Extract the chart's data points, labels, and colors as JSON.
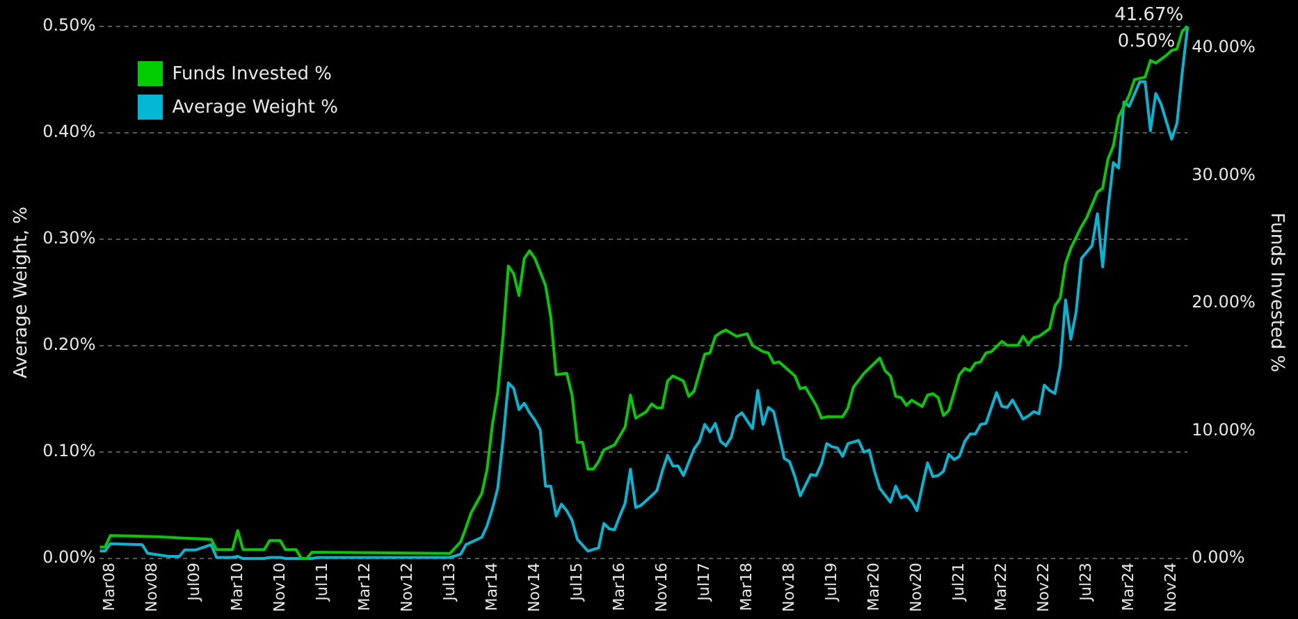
{
  "chart_data": {
    "type": "line",
    "ylabel": "Average Weight, %",
    "y2label": "Funds Invested %",
    "xlim": [
      "2008-01",
      "2025-02"
    ],
    "xticks": [
      {
        "value": "2008-03",
        "label": "Mar08"
      },
      {
        "value": "2008-11",
        "label": "Nov08"
      },
      {
        "value": "2009-07",
        "label": "Jul09"
      },
      {
        "value": "2010-03",
        "label": "Mar10"
      },
      {
        "value": "2010-11",
        "label": "Nov10"
      },
      {
        "value": "2011-07",
        "label": "Jul11"
      },
      {
        "value": "2012-03",
        "label": "Mar12"
      },
      {
        "value": "2012-11",
        "label": "Nov12"
      },
      {
        "value": "2013-07",
        "label": "Jul13"
      },
      {
        "value": "2014-03",
        "label": "Mar14"
      },
      {
        "value": "2014-11",
        "label": "Nov14"
      },
      {
        "value": "2015-07",
        "label": "Jul15"
      },
      {
        "value": "2016-03",
        "label": "Mar16"
      },
      {
        "value": "2016-11",
        "label": "Nov16"
      },
      {
        "value": "2017-07",
        "label": "Jul17"
      },
      {
        "value": "2018-03",
        "label": "Mar18"
      },
      {
        "value": "2018-11",
        "label": "Nov18"
      },
      {
        "value": "2019-07",
        "label": "Jul19"
      },
      {
        "value": "2020-03",
        "label": "Mar20"
      },
      {
        "value": "2020-11",
        "label": "Nov20"
      },
      {
        "value": "2021-07",
        "label": "Jul21"
      },
      {
        "value": "2022-03",
        "label": "Mar22"
      },
      {
        "value": "2022-11",
        "label": "Nov22"
      },
      {
        "value": "2023-07",
        "label": "Jul23"
      },
      {
        "value": "2024-03",
        "label": "Mar24"
      },
      {
        "value": "2024-11",
        "label": "Nov24"
      }
    ],
    "ylim": [
      0,
      0.5
    ],
    "yticks": [
      {
        "value": 0,
        "label": "0.00%"
      },
      {
        "value": 0.1,
        "label": "0.10%"
      },
      {
        "value": 0.2,
        "label": "0.20%"
      },
      {
        "value": 0.3,
        "label": "0.30%"
      },
      {
        "value": 0.4,
        "label": "0.40%"
      },
      {
        "value": 0.5,
        "label": "0.50%"
      }
    ],
    "y2lim": [
      0,
      41.67
    ],
    "y2ticks": [
      {
        "value": 0,
        "label": "0.00%"
      },
      {
        "value": 10,
        "label": "10.00%"
      },
      {
        "value": 20,
        "label": "20.00%"
      },
      {
        "value": 30,
        "label": "30.00%"
      },
      {
        "value": 40,
        "label": "40.00%"
      }
    ],
    "grid": "y",
    "legend": "top left",
    "series": [
      {
        "name": "Funds Invested %",
        "color": "#00cc00",
        "axis": "y2",
        "x": [
          "2008-01",
          "2008-02",
          "2008-03",
          "2008-12",
          "2009-10",
          "2009-11",
          "2010-02",
          "2010-03",
          "2010-04",
          "2010-08",
          "2010-09",
          "2010-11",
          "2010-12",
          "2011-02",
          "2011-03",
          "2011-04",
          "2011-05",
          "2013-07",
          "2013-09",
          "2013-10",
          "2013-11",
          "2014-01",
          "2014-02",
          "2014-03",
          "2014-04",
          "2014-05",
          "2014-06",
          "2014-07",
          "2014-08",
          "2014-09",
          "2014-10",
          "2014-11",
          "2015-01",
          "2015-02",
          "2015-03",
          "2015-05",
          "2015-06",
          "2015-07",
          "2015-08",
          "2015-09",
          "2015-10",
          "2015-11",
          "2015-12",
          "2016-02",
          "2016-04",
          "2016-05",
          "2016-06",
          "2016-08",
          "2016-09",
          "2016-10",
          "2016-11",
          "2016-12",
          "2017-01",
          "2017-03",
          "2017-04",
          "2017-05",
          "2017-07",
          "2017-08",
          "2017-09",
          "2017-10",
          "2017-11",
          "2018-01",
          "2018-03",
          "2018-04",
          "2018-06",
          "2018-07",
          "2018-08",
          "2018-09",
          "2018-12",
          "2019-01",
          "2019-02",
          "2019-04",
          "2019-05",
          "2019-06",
          "2019-09",
          "2019-10",
          "2019-11",
          "2020-01",
          "2020-02",
          "2020-04",
          "2020-05",
          "2020-06",
          "2020-07",
          "2020-08",
          "2020-09",
          "2020-10",
          "2020-12",
          "2021-01",
          "2021-02",
          "2021-03",
          "2021-04",
          "2021-05",
          "2021-07",
          "2021-08",
          "2021-09",
          "2021-10",
          "2021-11",
          "2021-12",
          "2022-01",
          "2022-03",
          "2022-04",
          "2022-06",
          "2022-07",
          "2022-08",
          "2022-09",
          "2022-10",
          "2022-12",
          "2023-01",
          "2023-02",
          "2023-03",
          "2023-04",
          "2023-06",
          "2023-07",
          "2023-09",
          "2023-10",
          "2023-11",
          "2023-12",
          "2024-01",
          "2024-02",
          "2024-03",
          "2024-04",
          "2024-06",
          "2024-07",
          "2024-08",
          "2024-10",
          "2024-11",
          "2024-12",
          "2025-01",
          "2025-02"
        ],
        "values": [
          0.9,
          0.9,
          1.8,
          1.7,
          1.5,
          0.7,
          0.7,
          2.2,
          0.7,
          0.7,
          1.4,
          1.4,
          0.7,
          0.7,
          0,
          0,
          0.5,
          0.4,
          1.3,
          2.4,
          3.6,
          5.1,
          7.0,
          10.5,
          13.0,
          17.4,
          22.9,
          22.3,
          20.6,
          23.5,
          24.1,
          23.5,
          21.4,
          18.9,
          14.4,
          14.5,
          12.8,
          9.1,
          9.1,
          7.0,
          7.0,
          7.6,
          8.5,
          8.9,
          10.3,
          12.8,
          11.0,
          11.5,
          12.1,
          11.8,
          11.8,
          13.9,
          14.3,
          13.9,
          12.7,
          13.1,
          16.0,
          16.1,
          17.4,
          17.7,
          17.9,
          17.4,
          17.6,
          16.7,
          16.2,
          16.1,
          15.3,
          15.4,
          14.3,
          13.3,
          13.4,
          12.0,
          11.0,
          11.1,
          11.1,
          11.8,
          13.4,
          14.5,
          14.9,
          15.7,
          14.7,
          14.3,
          12.7,
          12.6,
          12.0,
          12.4,
          11.9,
          12.8,
          12.9,
          12.6,
          11.2,
          11.6,
          14.4,
          14.9,
          14.7,
          15.3,
          15.4,
          16.1,
          16.2,
          17.0,
          16.7,
          16.7,
          17.4,
          16.8,
          17.3,
          17.4,
          18.0,
          19.8,
          20.4,
          23.1,
          24.3,
          26.0,
          26.7,
          28.7,
          29.0,
          31.3,
          32.3,
          34.6,
          35.4,
          36.3,
          37.5,
          37.7,
          39.0,
          38.8,
          39.4,
          39.8,
          39.9,
          41.3,
          41.67
        ],
        "value_labels": [
          null,
          null,
          null,
          null,
          null,
          null,
          null,
          null,
          null,
          null,
          null,
          null,
          null,
          null,
          null,
          null,
          null,
          null,
          null,
          null,
          null,
          null,
          null,
          null,
          null,
          null,
          null,
          null,
          null,
          null,
          null,
          null,
          null,
          null,
          null,
          null,
          null,
          null,
          null,
          null,
          null,
          null,
          null,
          null,
          null,
          null,
          null,
          null,
          null,
          null,
          null,
          null,
          null,
          null,
          null,
          null,
          null,
          null,
          null,
          null,
          null,
          null,
          null,
          null,
          null,
          null,
          null,
          null,
          null,
          null,
          null,
          null,
          null,
          null,
          null,
          null,
          null,
          null,
          null,
          null,
          null,
          null,
          null,
          null,
          null,
          null,
          null,
          null,
          null,
          null,
          null,
          null,
          null,
          null,
          null,
          null,
          null,
          null,
          null,
          null,
          null,
          null,
          null,
          null,
          null,
          null,
          null,
          null,
          null,
          null,
          null,
          null,
          null,
          null,
          null,
          null,
          null,
          null,
          null,
          null,
          null,
          null,
          null,
          null,
          null,
          null,
          null,
          null,
          "41.67%"
        ]
      },
      {
        "name": "Average Weight %",
        "color": "#00b8d4",
        "x": [
          "2008-01",
          "2008-02",
          "2008-03",
          "2008-09",
          "2008-10",
          "2009-02",
          "2009-04",
          "2009-05",
          "2009-07",
          "2009-10",
          "2009-11",
          "2010-02",
          "2010-03",
          "2010-04",
          "2010-08",
          "2010-09",
          "2010-11",
          "2010-12",
          "2011-05",
          "2011-06",
          "2013-07",
          "2013-09",
          "2013-10",
          "2014-01",
          "2014-02",
          "2014-03",
          "2014-04",
          "2014-05",
          "2014-06",
          "2014-07",
          "2014-08",
          "2014-09",
          "2014-10",
          "2014-11",
          "2014-12",
          "2015-01",
          "2015-02",
          "2015-03",
          "2015-04",
          "2015-05",
          "2015-06",
          "2015-07",
          "2015-09",
          "2015-11",
          "2015-12",
          "2016-01",
          "2016-02",
          "2016-03",
          "2016-04",
          "2016-05",
          "2016-06",
          "2016-07",
          "2016-09",
          "2016-10",
          "2016-11",
          "2016-12",
          "2017-01",
          "2017-02",
          "2017-03",
          "2017-05",
          "2017-06",
          "2017-07",
          "2017-08",
          "2017-09",
          "2017-10",
          "2017-11",
          "2017-12",
          "2018-01",
          "2018-02",
          "2018-04",
          "2018-05",
          "2018-06",
          "2018-07",
          "2018-08",
          "2018-10",
          "2018-11",
          "2018-12",
          "2019-01",
          "2019-03",
          "2019-04",
          "2019-05",
          "2019-06",
          "2019-07",
          "2019-08",
          "2019-09",
          "2019-10",
          "2019-12",
          "2020-01",
          "2020-02",
          "2020-03",
          "2020-04",
          "2020-06",
          "2020-07",
          "2020-08",
          "2020-09",
          "2020-10",
          "2020-11",
          "2020-12",
          "2021-01",
          "2021-02",
          "2021-03",
          "2021-04",
          "2021-05",
          "2021-06",
          "2021-07",
          "2021-08",
          "2021-09",
          "2021-10",
          "2021-11",
          "2021-12",
          "2022-02",
          "2022-03",
          "2022-04",
          "2022-05",
          "2022-07",
          "2022-08",
          "2022-09",
          "2022-10",
          "2022-11",
          "2022-12",
          "2023-01",
          "2023-02",
          "2023-03",
          "2023-04",
          "2023-05",
          "2023-06",
          "2023-08",
          "2023-09",
          "2023-10",
          "2023-11",
          "2023-12",
          "2024-01",
          "2024-02",
          "2024-03",
          "2024-05",
          "2024-06",
          "2024-07",
          "2024-08",
          "2024-09",
          "2024-11",
          "2024-12",
          "2025-01",
          "2025-02"
        ],
        "values": [
          0.007,
          0.007,
          0.014,
          0.013,
          0.005,
          0.002,
          0.002,
          0.008,
          0.008,
          0.013,
          0.001,
          0.001,
          0.002,
          0,
          0,
          0.001,
          0.001,
          0,
          0,
          0.001,
          0.001,
          0.004,
          0.013,
          0.02,
          0.031,
          0.047,
          0.066,
          0.112,
          0.165,
          0.16,
          0.14,
          0.146,
          0.137,
          0.13,
          0.121,
          0.068,
          0.068,
          0.04,
          0.051,
          0.045,
          0.036,
          0.018,
          0.007,
          0.01,
          0.033,
          0.028,
          0.027,
          0.04,
          0.052,
          0.084,
          0.048,
          0.05,
          0.059,
          0.064,
          0.082,
          0.097,
          0.087,
          0.087,
          0.078,
          0.103,
          0.11,
          0.126,
          0.119,
          0.127,
          0.11,
          0.106,
          0.114,
          0.133,
          0.137,
          0.122,
          0.158,
          0.126,
          0.142,
          0.138,
          0.094,
          0.091,
          0.077,
          0.059,
          0.079,
          0.078,
          0.089,
          0.108,
          0.105,
          0.104,
          0.096,
          0.108,
          0.111,
          0.1,
          0.102,
          0.082,
          0.066,
          0.053,
          0.068,
          0.057,
          0.059,
          0.054,
          0.045,
          0.068,
          0.09,
          0.077,
          0.078,
          0.082,
          0.098,
          0.093,
          0.096,
          0.11,
          0.117,
          0.117,
          0.126,
          0.127,
          0.156,
          0.143,
          0.142,
          0.149,
          0.131,
          0.134,
          0.138,
          0.136,
          0.163,
          0.158,
          0.155,
          0.181,
          0.243,
          0.206,
          0.232,
          0.282,
          0.294,
          0.324,
          0.274,
          0.328,
          0.372,
          0.367,
          0.429,
          0.425,
          0.448,
          0.448,
          0.402,
          0.437,
          0.427,
          0.394,
          0.409,
          0.457,
          0.5
        ],
        "value_labels": [
          null,
          null,
          null,
          null,
          null,
          null,
          null,
          null,
          null,
          null,
          null,
          null,
          null,
          null,
          null,
          null,
          null,
          null,
          null,
          null,
          null,
          null,
          null,
          null,
          null,
          null,
          null,
          null,
          null,
          null,
          null,
          null,
          null,
          null,
          null,
          null,
          null,
          null,
          null,
          null,
          null,
          null,
          null,
          null,
          null,
          null,
          null,
          null,
          null,
          null,
          null,
          null,
          null,
          null,
          null,
          null,
          null,
          null,
          null,
          null,
          null,
          null,
          null,
          null,
          null,
          null,
          null,
          null,
          null,
          null,
          null,
          null,
          null,
          null,
          null,
          null,
          null,
          null,
          null,
          null,
          null,
          null,
          null,
          null,
          null,
          null,
          null,
          null,
          null,
          null,
          null,
          null,
          null,
          null,
          null,
          null,
          null,
          null,
          null,
          null,
          null,
          null,
          null,
          null,
          null,
          null,
          null,
          null,
          null,
          null,
          null,
          null,
          null,
          null,
          null,
          null,
          null,
          null,
          null,
          null,
          null,
          null,
          null,
          null,
          null,
          null,
          null,
          null,
          null,
          null,
          null,
          null,
          null,
          null,
          null,
          null,
          null,
          null,
          null,
          null,
          null,
          null,
          "0.50%"
        ]
      }
    ]
  }
}
